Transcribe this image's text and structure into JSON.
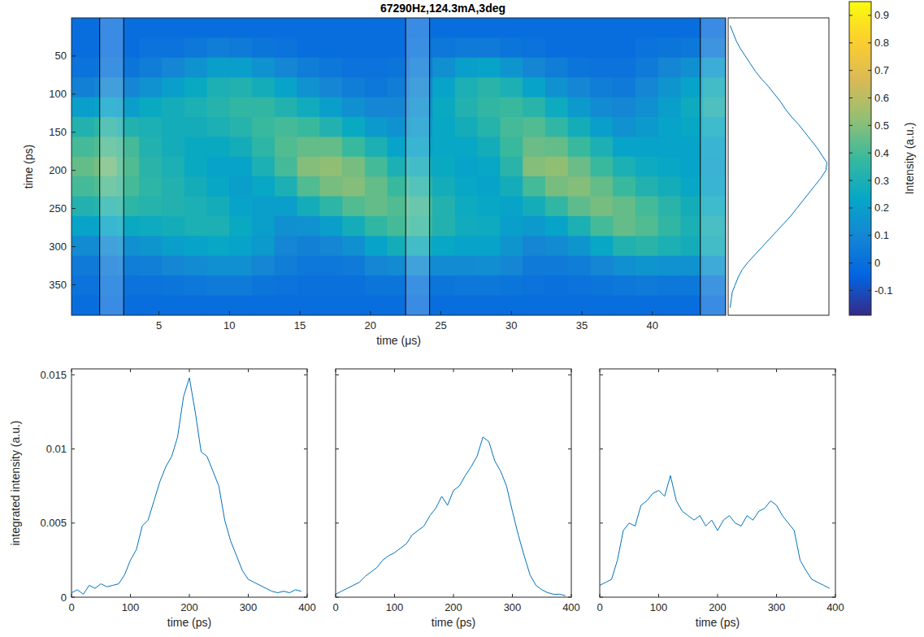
{
  "chart_data": [
    {
      "type": "heatmap",
      "title": "67290Hz,124.3mA,3deg",
      "xlabel": "time (μs)",
      "ylabel": "time (ps)",
      "xlim": [
        -1.2,
        45.2
      ],
      "ylim": [
        0,
        390
      ],
      "xticks": [
        5,
        10,
        15,
        20,
        25,
        30,
        35,
        40
      ],
      "yticks": [
        50,
        100,
        150,
        200,
        250,
        300,
        350
      ],
      "grid": false,
      "x_edges": [
        -1.2,
        0.4,
        2,
        3.6,
        5.2,
        6.8,
        8.4,
        10,
        11.6,
        13.2,
        14.8,
        16.4,
        18,
        19.6,
        21.2,
        22.8,
        24.4,
        26,
        27.6,
        29.2,
        30.8,
        32.4,
        34,
        35.6,
        37.2,
        38.8,
        40.4,
        42,
        43.6,
        45.2
      ],
      "y_edges": [
        0,
        26,
        52,
        78,
        104,
        130,
        156,
        182,
        208,
        234,
        260,
        286,
        312,
        338,
        364,
        390
      ],
      "z": [
        [
          0,
          0,
          0.02,
          0.08,
          0.2,
          0.32,
          0.4,
          0.45,
          0.4,
          0.32,
          0.22,
          0.12,
          0.05,
          0.02,
          0
        ],
        [
          0,
          0,
          0.03,
          0.1,
          0.22,
          0.35,
          0.42,
          0.48,
          0.42,
          0.33,
          0.23,
          0.12,
          0.05,
          0.02,
          0
        ],
        [
          0,
          0,
          0.03,
          0.1,
          0.2,
          0.32,
          0.4,
          0.42,
          0.4,
          0.35,
          0.25,
          0.14,
          0.06,
          0.02,
          0
        ],
        [
          0,
          0.02,
          0.06,
          0.15,
          0.25,
          0.3,
          0.32,
          0.34,
          0.35,
          0.33,
          0.26,
          0.16,
          0.07,
          0.02,
          0
        ],
        [
          0,
          0.02,
          0.1,
          0.2,
          0.28,
          0.28,
          0.28,
          0.3,
          0.32,
          0.32,
          0.28,
          0.2,
          0.1,
          0.03,
          0
        ],
        [
          0,
          0.04,
          0.15,
          0.25,
          0.3,
          0.28,
          0.25,
          0.25,
          0.28,
          0.3,
          0.3,
          0.22,
          0.12,
          0.04,
          0
        ],
        [
          0,
          0.06,
          0.2,
          0.3,
          0.33,
          0.3,
          0.25,
          0.22,
          0.24,
          0.28,
          0.3,
          0.24,
          0.14,
          0.05,
          0
        ],
        [
          0,
          0.05,
          0.2,
          0.32,
          0.36,
          0.33,
          0.28,
          0.22,
          0.2,
          0.22,
          0.25,
          0.22,
          0.14,
          0.05,
          0
        ],
        [
          0,
          0.03,
          0.15,
          0.28,
          0.36,
          0.38,
          0.35,
          0.3,
          0.24,
          0.2,
          0.2,
          0.18,
          0.1,
          0.03,
          0
        ],
        [
          0,
          0.02,
          0.1,
          0.22,
          0.32,
          0.4,
          0.42,
          0.4,
          0.3,
          0.2,
          0.14,
          0.1,
          0.06,
          0.02,
          0
        ],
        [
          0,
          0,
          0.06,
          0.15,
          0.27,
          0.38,
          0.45,
          0.5,
          0.42,
          0.28,
          0.15,
          0.08,
          0.04,
          0.01,
          0
        ],
        [
          0,
          0,
          0.04,
          0.1,
          0.2,
          0.32,
          0.45,
          0.52,
          0.48,
          0.35,
          0.2,
          0.1,
          0.04,
          0.01,
          0
        ],
        [
          0,
          0,
          0.02,
          0.06,
          0.14,
          0.25,
          0.38,
          0.48,
          0.5,
          0.42,
          0.28,
          0.14,
          0.05,
          0.01,
          0
        ],
        [
          0,
          0,
          0.02,
          0.04,
          0.1,
          0.18,
          0.3,
          0.4,
          0.45,
          0.45,
          0.36,
          0.22,
          0.1,
          0.03,
          0
        ],
        [
          0,
          0,
          0.03,
          0.06,
          0.1,
          0.15,
          0.22,
          0.3,
          0.38,
          0.42,
          0.4,
          0.28,
          0.12,
          0.03,
          0
        ],
        [
          0,
          0.02,
          0.06,
          0.1,
          0.14,
          0.18,
          0.22,
          0.28,
          0.34,
          0.4,
          0.38,
          0.28,
          0.12,
          0.03,
          0
        ],
        [
          0,
          0.04,
          0.14,
          0.22,
          0.25,
          0.24,
          0.24,
          0.25,
          0.28,
          0.32,
          0.32,
          0.24,
          0.12,
          0.03,
          0
        ],
        [
          0,
          0.05,
          0.2,
          0.3,
          0.32,
          0.28,
          0.24,
          0.22,
          0.24,
          0.26,
          0.27,
          0.22,
          0.12,
          0.04,
          0
        ],
        [
          0,
          0.05,
          0.22,
          0.34,
          0.36,
          0.33,
          0.28,
          0.24,
          0.22,
          0.24,
          0.26,
          0.22,
          0.13,
          0.04,
          0
        ],
        [
          0,
          0.03,
          0.16,
          0.3,
          0.38,
          0.4,
          0.38,
          0.34,
          0.28,
          0.22,
          0.2,
          0.16,
          0.1,
          0.03,
          0
        ],
        [
          0,
          0.02,
          0.1,
          0.22,
          0.34,
          0.42,
          0.46,
          0.5,
          0.4,
          0.28,
          0.18,
          0.1,
          0.05,
          0.02,
          0
        ],
        [
          0,
          0,
          0.06,
          0.15,
          0.26,
          0.36,
          0.45,
          0.52,
          0.48,
          0.36,
          0.22,
          0.12,
          0.05,
          0.01,
          0
        ],
        [
          0,
          0,
          0.03,
          0.1,
          0.18,
          0.28,
          0.38,
          0.46,
          0.5,
          0.44,
          0.3,
          0.16,
          0.06,
          0.02,
          0
        ],
        [
          0,
          0,
          0.02,
          0.06,
          0.12,
          0.2,
          0.3,
          0.38,
          0.45,
          0.48,
          0.4,
          0.24,
          0.1,
          0.03,
          0
        ],
        [
          0,
          0,
          0.02,
          0.05,
          0.1,
          0.15,
          0.22,
          0.3,
          0.38,
          0.45,
          0.45,
          0.32,
          0.14,
          0.04,
          0
        ],
        [
          0,
          0.02,
          0.05,
          0.1,
          0.14,
          0.18,
          0.22,
          0.26,
          0.32,
          0.4,
          0.42,
          0.34,
          0.16,
          0.05,
          0
        ],
        [
          0,
          0.03,
          0.1,
          0.16,
          0.2,
          0.22,
          0.22,
          0.24,
          0.28,
          0.34,
          0.36,
          0.3,
          0.15,
          0.04,
          0
        ],
        [
          0,
          0.04,
          0.14,
          0.22,
          0.26,
          0.24,
          0.22,
          0.22,
          0.24,
          0.28,
          0.3,
          0.28,
          0.15,
          0.04,
          0
        ],
        [
          0,
          0.05,
          0.18,
          0.28,
          0.32,
          0.26,
          0.22,
          0.2,
          0.22,
          0.26,
          0.3,
          0.28,
          0.16,
          0.05,
          0
        ]
      ],
      "windows": [
        [
          0.8,
          2.5
        ],
        [
          22.5,
          24.2
        ],
        [
          43.4,
          45.2
        ]
      ],
      "colorbar": {
        "label": "Intensity (a.u.)",
        "lim": [
          -0.19,
          0.95
        ],
        "ticks": [
          -0.1,
          0,
          0.1,
          0.2,
          0.3,
          0.4,
          0.5,
          0.6,
          0.7,
          0.8,
          0.9
        ]
      }
    },
    {
      "type": "line",
      "orientation": "horizontal",
      "tick_labels": false,
      "grid": false,
      "color": "#0072bd",
      "xlim": [
        0,
        390
      ],
      "ylim": [
        0,
        1
      ],
      "x": [
        10,
        20,
        30,
        40,
        50,
        60,
        70,
        80,
        90,
        100,
        110,
        120,
        130,
        140,
        150,
        160,
        170,
        180,
        190,
        200,
        210,
        220,
        230,
        240,
        250,
        260,
        270,
        280,
        290,
        300,
        310,
        320,
        330,
        340,
        350,
        360,
        370,
        380
      ],
      "values": [
        0.02,
        0.05,
        0.08,
        0.12,
        0.17,
        0.22,
        0.27,
        0.33,
        0.4,
        0.46,
        0.52,
        0.57,
        0.63,
        0.7,
        0.76,
        0.82,
        0.88,
        0.93,
        0.98,
        0.97,
        0.92,
        0.86,
        0.8,
        0.74,
        0.68,
        0.62,
        0.55,
        0.48,
        0.41,
        0.34,
        0.27,
        0.2,
        0.14,
        0.1,
        0.07,
        0.04,
        0.03,
        0.02
      ]
    },
    {
      "type": "line",
      "xlabel": "time (ps)",
      "ylabel": "integrated intensity (a.u.)",
      "grid": false,
      "color": "#0072bd",
      "xlim": [
        0,
        400
      ],
      "ylim": [
        0,
        0.0154
      ],
      "xticks": [
        0,
        100,
        200,
        300,
        400
      ],
      "yticks": [
        0,
        0.005,
        0.01,
        0.015
      ],
      "x": [
        0,
        10,
        20,
        30,
        40,
        50,
        60,
        70,
        80,
        90,
        100,
        110,
        120,
        130,
        140,
        150,
        160,
        170,
        180,
        190,
        200,
        210,
        220,
        230,
        240,
        250,
        260,
        270,
        280,
        290,
        300,
        310,
        320,
        330,
        340,
        350,
        360,
        370,
        380,
        390
      ],
      "values": [
        0.0003,
        0.0005,
        0.0002,
        0.0008,
        0.0006,
        0.0009,
        0.0007,
        0.0008,
        0.0009,
        0.0015,
        0.0025,
        0.0032,
        0.0048,
        0.0052,
        0.0065,
        0.0078,
        0.0088,
        0.0095,
        0.0108,
        0.0135,
        0.0148,
        0.0125,
        0.0098,
        0.0095,
        0.0085,
        0.0075,
        0.0052,
        0.0038,
        0.0028,
        0.0018,
        0.0012,
        0.001,
        0.0008,
        0.0006,
        0.0004,
        0.0003,
        0.0004,
        0.0003,
        0.0005,
        0.0004
      ]
    },
    {
      "type": "line",
      "xlabel": "time (ps)",
      "tick_labels": "x",
      "grid": false,
      "color": "#0072bd",
      "xlim": [
        0,
        400
      ],
      "ylim": [
        0,
        0.0154
      ],
      "xticks": [
        0,
        100,
        200,
        300,
        400
      ],
      "yticks": [
        0,
        0.005,
        0.01,
        0.015
      ],
      "x": [
        0,
        10,
        20,
        30,
        40,
        50,
        60,
        70,
        80,
        90,
        100,
        110,
        120,
        130,
        140,
        150,
        160,
        170,
        180,
        190,
        200,
        210,
        220,
        230,
        240,
        250,
        260,
        270,
        280,
        290,
        300,
        310,
        320,
        330,
        340,
        350,
        360,
        370,
        380,
        390
      ],
      "values": [
        0.0002,
        0.0004,
        0.0006,
        0.0008,
        0.001,
        0.0014,
        0.0017,
        0.002,
        0.0025,
        0.0028,
        0.003,
        0.0033,
        0.0036,
        0.0042,
        0.0045,
        0.0048,
        0.0055,
        0.006,
        0.0068,
        0.0062,
        0.0072,
        0.0075,
        0.0082,
        0.0088,
        0.0095,
        0.0108,
        0.0105,
        0.0092,
        0.0085,
        0.0075,
        0.0058,
        0.0042,
        0.0028,
        0.0015,
        0.0008,
        0.0005,
        0.0003,
        0.0002,
        0.0002,
        0.0001
      ]
    },
    {
      "type": "line",
      "xlabel": "time (ps)",
      "tick_labels": "x",
      "grid": false,
      "color": "#0072bd",
      "xlim": [
        0,
        400
      ],
      "ylim": [
        0,
        0.0154
      ],
      "xticks": [
        0,
        100,
        200,
        300,
        400
      ],
      "yticks": [
        0,
        0.005,
        0.01,
        0.015
      ],
      "x": [
        0,
        10,
        20,
        30,
        40,
        50,
        60,
        70,
        80,
        90,
        100,
        110,
        120,
        130,
        140,
        150,
        160,
        170,
        180,
        190,
        200,
        210,
        220,
        230,
        240,
        250,
        260,
        270,
        280,
        290,
        300,
        310,
        320,
        330,
        340,
        350,
        360,
        370,
        380,
        390
      ],
      "values": [
        0.0008,
        0.001,
        0.0012,
        0.0025,
        0.0045,
        0.005,
        0.0048,
        0.0062,
        0.0065,
        0.007,
        0.0072,
        0.0068,
        0.0082,
        0.0065,
        0.0058,
        0.0055,
        0.0052,
        0.0055,
        0.0048,
        0.0052,
        0.0045,
        0.0052,
        0.0055,
        0.005,
        0.0048,
        0.0055,
        0.0052,
        0.0058,
        0.006,
        0.0065,
        0.0062,
        0.0055,
        0.005,
        0.0045,
        0.0025,
        0.0018,
        0.0012,
        0.001,
        0.0008,
        0.0006
      ]
    }
  ]
}
